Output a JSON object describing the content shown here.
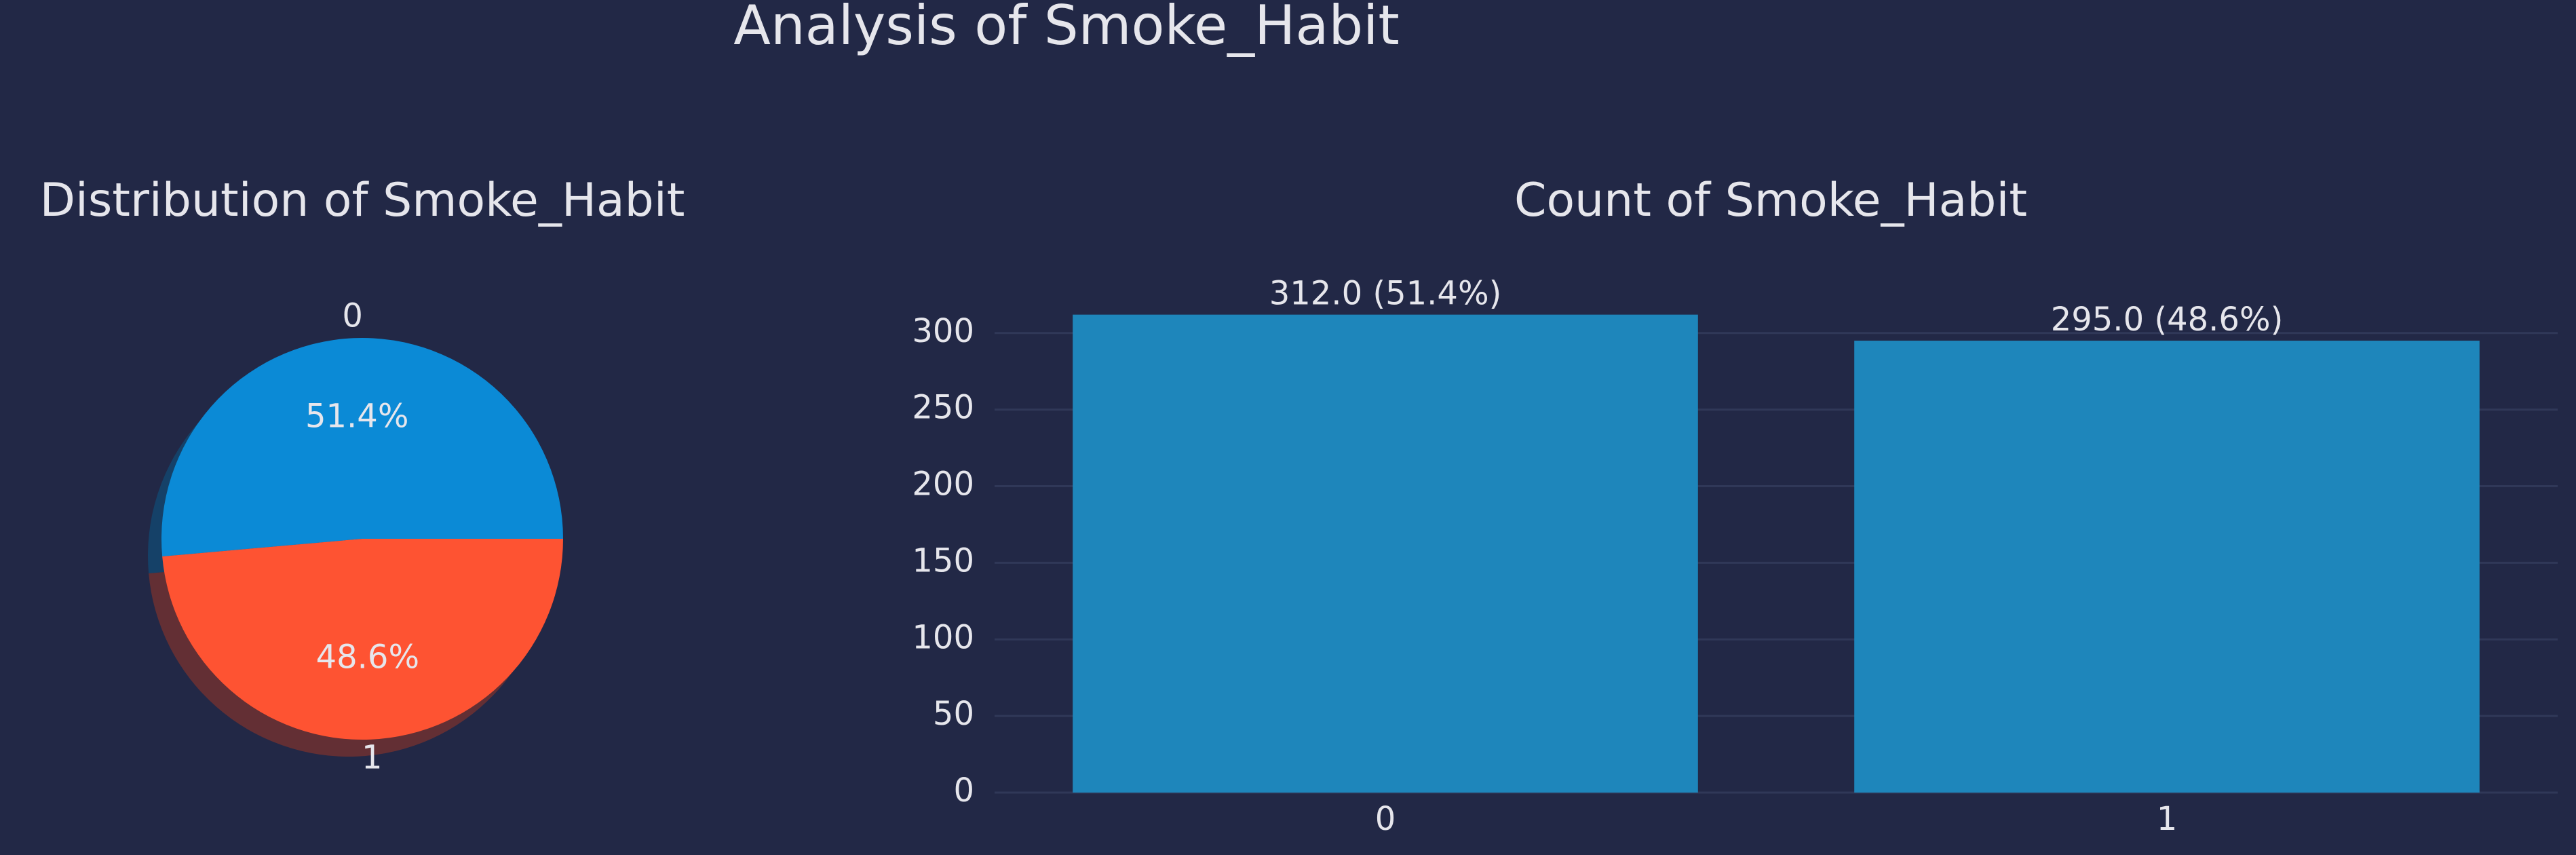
{
  "figure": {
    "suptitle": "Analysis of Smoke_Habit",
    "background_color": "#222846",
    "text_color": "#e6e6ec",
    "grid_color": "#303858"
  },
  "chart_data": [
    {
      "type": "pie",
      "title": "Distribution of Smoke_Habit",
      "categories": [
        "0",
        "1"
      ],
      "values": [
        312,
        295
      ],
      "pct_labels": [
        "51.4%",
        "48.6%"
      ],
      "colors": [
        "#0b8ad6",
        "#fe5332"
      ],
      "shadow": true
    },
    {
      "type": "bar",
      "title": "Count of Smoke_Habit",
      "categories": [
        "0",
        "1"
      ],
      "values": [
        312,
        295
      ],
      "bar_labels": [
        "312.0 (51.4%)",
        "295.0 (48.6%)"
      ],
      "bar_color": "#1e86bb",
      "xlabel": "",
      "ylabel": "",
      "ylim": [
        0,
        325
      ],
      "yticks": [
        0,
        50,
        100,
        150,
        200,
        250,
        300
      ],
      "grid": true
    }
  ]
}
